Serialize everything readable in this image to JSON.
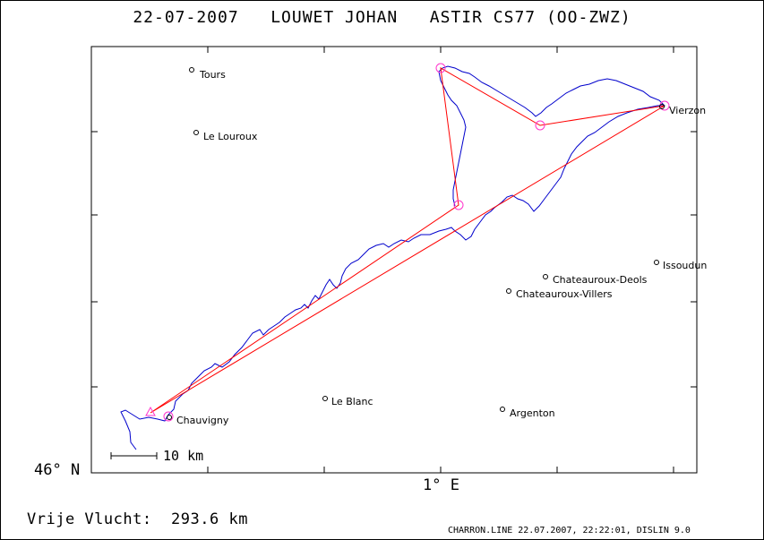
{
  "header": {
    "date": "22-07-2007",
    "pilot": "LOUWET JOHAN",
    "glider": "ASTIR CS77 (OO-ZWZ)"
  },
  "axes": {
    "lat_label": "46° N",
    "lon_label": "1° E"
  },
  "scale": {
    "label": "10 km"
  },
  "distance": {
    "label": "Vrije Vlucht:",
    "value": "293.6 km"
  },
  "footer": {
    "text": "CHARRON.LINE 22.07.2007, 22:22:01, DISLIN 9.0"
  },
  "places": [
    {
      "name": "Tours"
    },
    {
      "name": "Le Louroux"
    },
    {
      "name": "Vierzon"
    },
    {
      "name": "Issoudun"
    },
    {
      "name": "Chateauroux-Deols"
    },
    {
      "name": "Chateauroux-Villers"
    },
    {
      "name": "Le Blanc"
    },
    {
      "name": "Argenton"
    },
    {
      "name": "Chauvigny"
    }
  ],
  "colors": {
    "track": "#0000cc",
    "task": "#ff0000",
    "turnpoint": "#ff33cc",
    "frame": "#000000"
  }
}
